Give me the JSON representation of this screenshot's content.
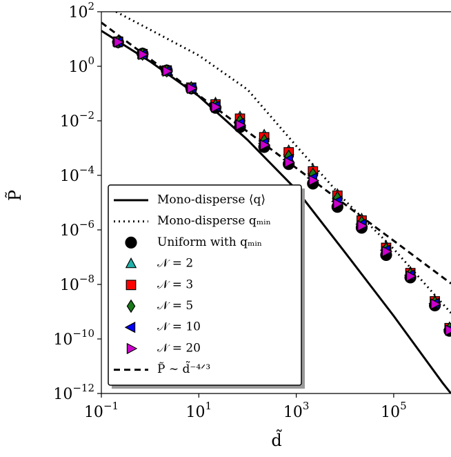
{
  "chart_data": {
    "type": "line",
    "x_label": "d̃",
    "y_label": "P̃",
    "xscale": "log",
    "yscale": "log",
    "xlim": [
      0.1,
      1500000
    ],
    "ylim": [
      1e-12,
      100
    ],
    "xticks": [
      {
        "value": 0.1,
        "label": "10^−1"
      },
      {
        "value": 10,
        "label": "10^1"
      },
      {
        "value": 1000,
        "label": "10^3"
      },
      {
        "value": 100000,
        "label": "10^5"
      }
    ],
    "yticks": [
      {
        "value": 1e-12,
        "label": "10^−12"
      },
      {
        "value": 1e-10,
        "label": "10^−10"
      },
      {
        "value": 1e-08,
        "label": "10^−8"
      },
      {
        "value": 1e-06,
        "label": "10^−6"
      },
      {
        "value": 0.0001,
        "label": "10^−4"
      },
      {
        "value": 0.01,
        "label": "10^−2"
      },
      {
        "value": 1,
        "label": "10^0"
      },
      {
        "value": 100,
        "label": "10^2"
      }
    ],
    "legend": "lower left",
    "series": [
      {
        "name": "Mono-disperse ⟨q⟩",
        "color": "#000000",
        "style": "solid",
        "x": [
          0.1,
          1,
          10,
          100,
          1000,
          10000,
          100000,
          1000000,
          1500000
        ],
        "values": [
          20,
          1.5,
          0.08,
          0.002,
          3e-05,
          1.5e-07,
          7e-10,
          2.5e-12,
          1e-12
        ]
      },
      {
        "name": "Mono-disperse qₘᵢₙ",
        "color": "#000000",
        "style": "dotted",
        "x": [
          0.2,
          1,
          10,
          100,
          1000,
          10000,
          100000,
          1000000,
          1500000
        ],
        "values": [
          100,
          22,
          2.5,
          0.14,
          0.0012,
          1.2e-05,
          2e-07,
          2e-09,
          9e-10
        ]
      },
      {
        "name": "Uniform with qₘᵢₙ",
        "color": "#000000",
        "marker": "circle",
        "x": [
          0.22,
          0.7,
          2.2,
          7,
          22,
          70,
          220,
          700,
          2200,
          7000,
          22000,
          70000,
          220000,
          700000,
          1400000
        ],
        "values": [
          7.7,
          2.9,
          0.7,
          0.155,
          0.03,
          0.0059,
          0.0011,
          0.00026,
          5e-05,
          7e-06,
          1.2e-06,
          1.2e-07,
          1.8e-08,
          1.7e-09,
          2e-10
        ]
      },
      {
        "name": "𝒩 = 2",
        "color": "#20b2aa",
        "marker": "triangle-up",
        "x": [
          0.22,
          0.7,
          2.2,
          7,
          22,
          70,
          220,
          700,
          2200,
          7000,
          22000,
          70000,
          220000,
          700000,
          1400000
        ],
        "values": [
          8,
          2.8,
          0.7,
          0.17,
          0.045,
          0.014,
          0.003,
          0.0008,
          0.00016,
          2e-05,
          2.5e-06,
          2.5e-07,
          2.8e-08,
          2.5e-09,
          2.6e-10
        ]
      },
      {
        "name": "𝒩 = 3",
        "color": "#ff0000",
        "marker": "square",
        "x": [
          0.22,
          0.7,
          2.2,
          7,
          22,
          70,
          220,
          700,
          2200,
          7000,
          22000,
          70000,
          220000,
          700000,
          1400000
        ],
        "values": [
          8,
          2.8,
          0.7,
          0.165,
          0.04,
          0.012,
          0.0025,
          0.0007,
          0.00014,
          1.8e-05,
          2.2e-06,
          2.2e-07,
          2.6e-08,
          2.4e-09,
          2.5e-10
        ]
      },
      {
        "name": "𝒩 = 5",
        "color": "#1a7a1a",
        "marker": "diamond",
        "x": [
          0.22,
          0.7,
          2.2,
          7,
          22,
          70,
          220,
          700,
          2200,
          7000,
          22000,
          70000,
          220000,
          700000,
          1400000
        ],
        "values": [
          7.8,
          2.8,
          0.68,
          0.16,
          0.037,
          0.01,
          0.0019,
          0.0005,
          0.00011,
          1.5e-05,
          1.9e-06,
          2e-07,
          2.4e-08,
          2.2e-09,
          2.4e-10
        ]
      },
      {
        "name": "𝒩 = 10",
        "color": "#0000ff",
        "marker": "triangle-left",
        "x": [
          0.22,
          0.7,
          2.2,
          7,
          22,
          70,
          220,
          700,
          2200,
          7000,
          22000,
          70000,
          220000,
          700000,
          1400000
        ],
        "values": [
          7.8,
          2.7,
          0.67,
          0.16,
          0.034,
          0.008,
          0.0015,
          0.00038,
          8e-05,
          1.1e-05,
          1.6e-06,
          1.8e-07,
          2.2e-08,
          2e-09,
          2.2e-10
        ]
      },
      {
        "name": "𝒩 = 20",
        "color": "#cc00cc",
        "marker": "triangle-right",
        "x": [
          0.22,
          0.7,
          2.2,
          7,
          22,
          70,
          220,
          700,
          2200,
          7000,
          22000,
          70000,
          220000,
          700000,
          1400000
        ],
        "values": [
          7.7,
          2.7,
          0.66,
          0.155,
          0.032,
          0.007,
          0.0013,
          0.0003,
          6.5e-05,
          9e-06,
          1.4e-06,
          1.6e-07,
          2e-08,
          1.9e-09,
          2.1e-10
        ]
      },
      {
        "name": "P̃ ∼ d̃⁻⁴ᐟ³",
        "color": "#000000",
        "style": "dashed",
        "x": [
          0.1,
          1500000
        ],
        "values": [
          40,
          1.08e-08
        ]
      }
    ]
  }
}
